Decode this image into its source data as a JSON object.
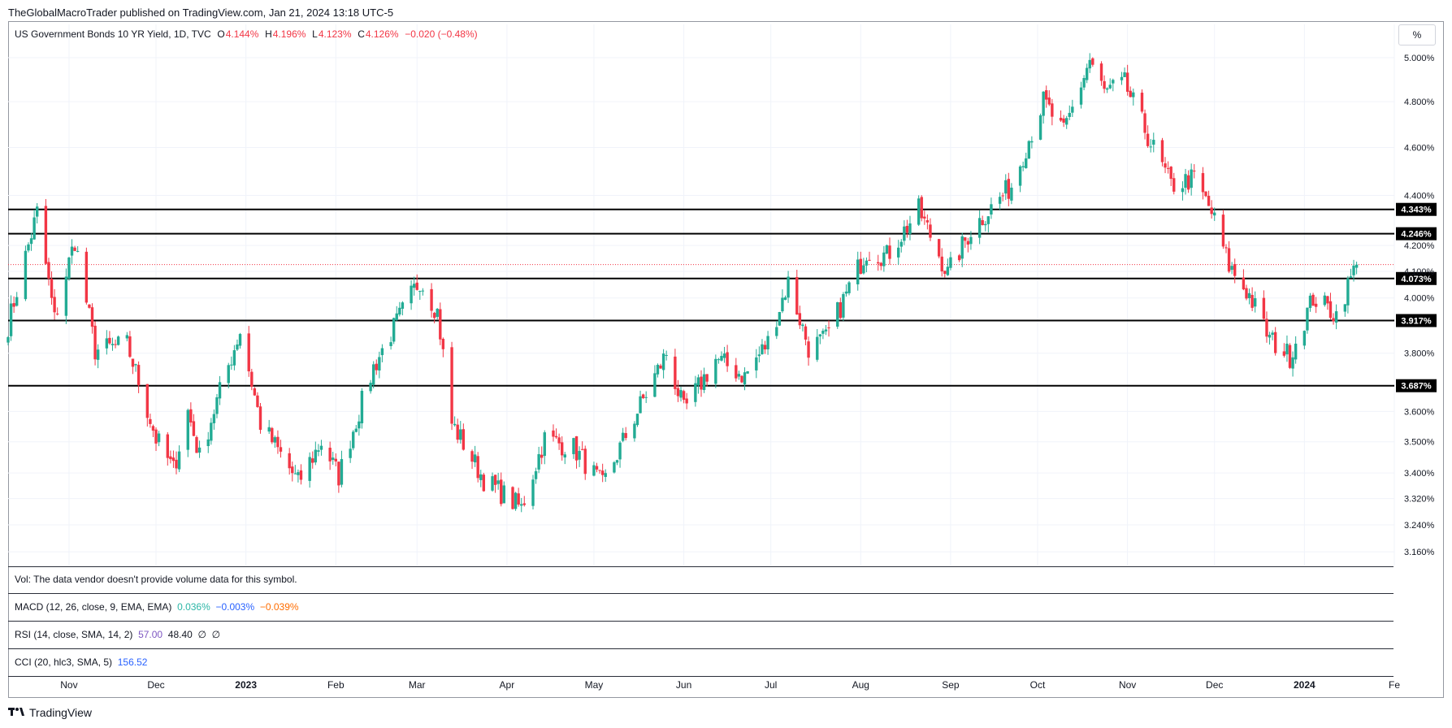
{
  "header": {
    "published": "TheGlobalMacroTrader published on TradingView.com, Jan 21, 2024 13:18 UTC-5"
  },
  "legend": {
    "symbol": "US Government Bonds 10 YR Yield, 1D, TVC",
    "o_label": "O",
    "o_value": "4.144%",
    "h_label": "H",
    "h_value": "4.196%",
    "l_label": "L",
    "l_value": "4.123%",
    "c_label": "C",
    "c_value": "4.126%",
    "change": "−0.020 (−0.48%)"
  },
  "scale_mode": "%",
  "panes": {
    "vol": "Vol: The data vendor doesn't provide volume data for this symbol.",
    "macd_label": "MACD (12, 26, close, 9, EMA, EMA)",
    "macd_v1": "0.036%",
    "macd_v2": "−0.003%",
    "macd_v3": "−0.039%",
    "rsi_label": "RSI (14, close, SMA, 14, 2)",
    "rsi_v1": "57.00",
    "rsi_v2": "48.40",
    "rsi_v3": "∅",
    "rsi_v4": "∅",
    "cci_label": "CCI (20, hlc3, SMA, 5)",
    "cci_v1": "156.52"
  },
  "brand": {
    "logo_text": "TradingView"
  },
  "colors": {
    "up": "#22ab94",
    "down": "#f23645",
    "level_line": "#000000",
    "grid": "#f0f3fa"
  },
  "chart_data": {
    "type": "candlestick",
    "y_scale": "log",
    "ylim": [
      3.12,
      5.08
    ],
    "y_ticks": [
      {
        "value": 3.16,
        "label": "3.160%"
      },
      {
        "value": 3.24,
        "label": "3.240%"
      },
      {
        "value": 3.32,
        "label": "3.320%"
      },
      {
        "value": 3.4,
        "label": "3.400%"
      },
      {
        "value": 3.5,
        "label": "3.500%"
      },
      {
        "value": 3.6,
        "label": "3.600%"
      },
      {
        "value": 3.8,
        "label": "3.800%"
      },
      {
        "value": 4.0,
        "label": "4.000%"
      },
      {
        "value": 4.1,
        "label": "4.100%"
      },
      {
        "value": 4.2,
        "label": "4.200%"
      },
      {
        "value": 4.4,
        "label": "4.400%"
      },
      {
        "value": 4.6,
        "label": "4.600%"
      },
      {
        "value": 4.8,
        "label": "4.800%"
      },
      {
        "value": 5.0,
        "label": "5.000%"
      }
    ],
    "x_ticks": [
      {
        "date": "2022-11-01",
        "label": "Nov",
        "bold": false
      },
      {
        "date": "2022-12-01",
        "label": "Dec",
        "bold": false
      },
      {
        "date": "2023-01-01",
        "label": "2023",
        "bold": true
      },
      {
        "date": "2023-02-01",
        "label": "Feb",
        "bold": false
      },
      {
        "date": "2023-03-01",
        "label": "Mar",
        "bold": false
      },
      {
        "date": "2023-04-01",
        "label": "Apr",
        "bold": false
      },
      {
        "date": "2023-05-01",
        "label": "May",
        "bold": false
      },
      {
        "date": "2023-06-01",
        "label": "Jun",
        "bold": false
      },
      {
        "date": "2023-07-01",
        "label": "Jul",
        "bold": false
      },
      {
        "date": "2023-08-01",
        "label": "Aug",
        "bold": false
      },
      {
        "date": "2023-09-01",
        "label": "Sep",
        "bold": false
      },
      {
        "date": "2023-10-01",
        "label": "Oct",
        "bold": false
      },
      {
        "date": "2023-11-01",
        "label": "Nov",
        "bold": false
      },
      {
        "date": "2023-12-01",
        "label": "Dec",
        "bold": false
      },
      {
        "date": "2024-01-01",
        "label": "2024",
        "bold": true
      },
      {
        "date": "2024-02-01",
        "label": "Fe",
        "bold": false
      }
    ],
    "x_range": [
      "2022-10-11",
      "2024-02-01"
    ],
    "levels": [
      {
        "value": 4.343,
        "label": "4.343%"
      },
      {
        "value": 4.246,
        "label": "4.246%"
      },
      {
        "value": 4.073,
        "label": "4.073%"
      },
      {
        "value": 3.917,
        "label": "3.917%"
      },
      {
        "value": 3.687,
        "label": "3.687%"
      }
    ],
    "last_close": 4.126,
    "path": [
      [
        "2022-10-11",
        3.9
      ],
      [
        "2022-10-21",
        4.33
      ],
      [
        "2022-10-27",
        3.92
      ],
      [
        "2022-11-03",
        4.22
      ],
      [
        "2022-11-10",
        3.81
      ],
      [
        "2022-11-21",
        3.83
      ],
      [
        "2022-12-01",
        3.51
      ],
      [
        "2022-12-07",
        3.41
      ],
      [
        "2022-12-12",
        3.6
      ],
      [
        "2022-12-16",
        3.45
      ],
      [
        "2022-12-30",
        3.88
      ],
      [
        "2023-01-06",
        3.56
      ],
      [
        "2023-01-19",
        3.37
      ],
      [
        "2023-01-27",
        3.5
      ],
      [
        "2023-02-02",
        3.39
      ],
      [
        "2023-02-14",
        3.75
      ],
      [
        "2023-02-23",
        3.93
      ],
      [
        "2023-03-02",
        4.07
      ],
      [
        "2023-03-08",
        3.95
      ],
      [
        "2023-03-13",
        3.56
      ],
      [
        "2023-03-24",
        3.38
      ],
      [
        "2023-04-06",
        3.29
      ],
      [
        "2023-04-14",
        3.51
      ],
      [
        "2023-04-24",
        3.48
      ],
      [
        "2023-05-04",
        3.36
      ],
      [
        "2023-05-18",
        3.64
      ],
      [
        "2023-05-26",
        3.8
      ],
      [
        "2023-06-01",
        3.6
      ],
      [
        "2023-06-12",
        3.78
      ],
      [
        "2023-06-22",
        3.72
      ],
      [
        "2023-06-30",
        3.84
      ],
      [
        "2023-07-07",
        4.06
      ],
      [
        "2023-07-14",
        3.82
      ],
      [
        "2023-07-20",
        3.85
      ],
      [
        "2023-08-03",
        4.18
      ],
      [
        "2023-08-10",
        4.16
      ],
      [
        "2023-08-21",
        4.34
      ],
      [
        "2023-08-31",
        4.09
      ],
      [
        "2023-09-08",
        4.26
      ],
      [
        "2023-09-22",
        4.44
      ],
      [
        "2023-10-03",
        4.8
      ],
      [
        "2023-10-10",
        4.66
      ],
      [
        "2023-10-19",
        4.99
      ],
      [
        "2023-10-24",
        4.84
      ],
      [
        "2023-10-31",
        4.88
      ],
      [
        "2023-11-09",
        4.62
      ],
      [
        "2023-11-16",
        4.44
      ],
      [
        "2023-11-24",
        4.47
      ],
      [
        "2023-11-30",
        4.33
      ],
      [
        "2023-12-06",
        4.12
      ],
      [
        "2023-12-13",
        4.01
      ],
      [
        "2023-12-20",
        3.85
      ],
      [
        "2023-12-27",
        3.79
      ],
      [
        "2024-01-04",
        4.0
      ],
      [
        "2024-01-12",
        3.94
      ],
      [
        "2024-01-19",
        4.126
      ]
    ]
  }
}
